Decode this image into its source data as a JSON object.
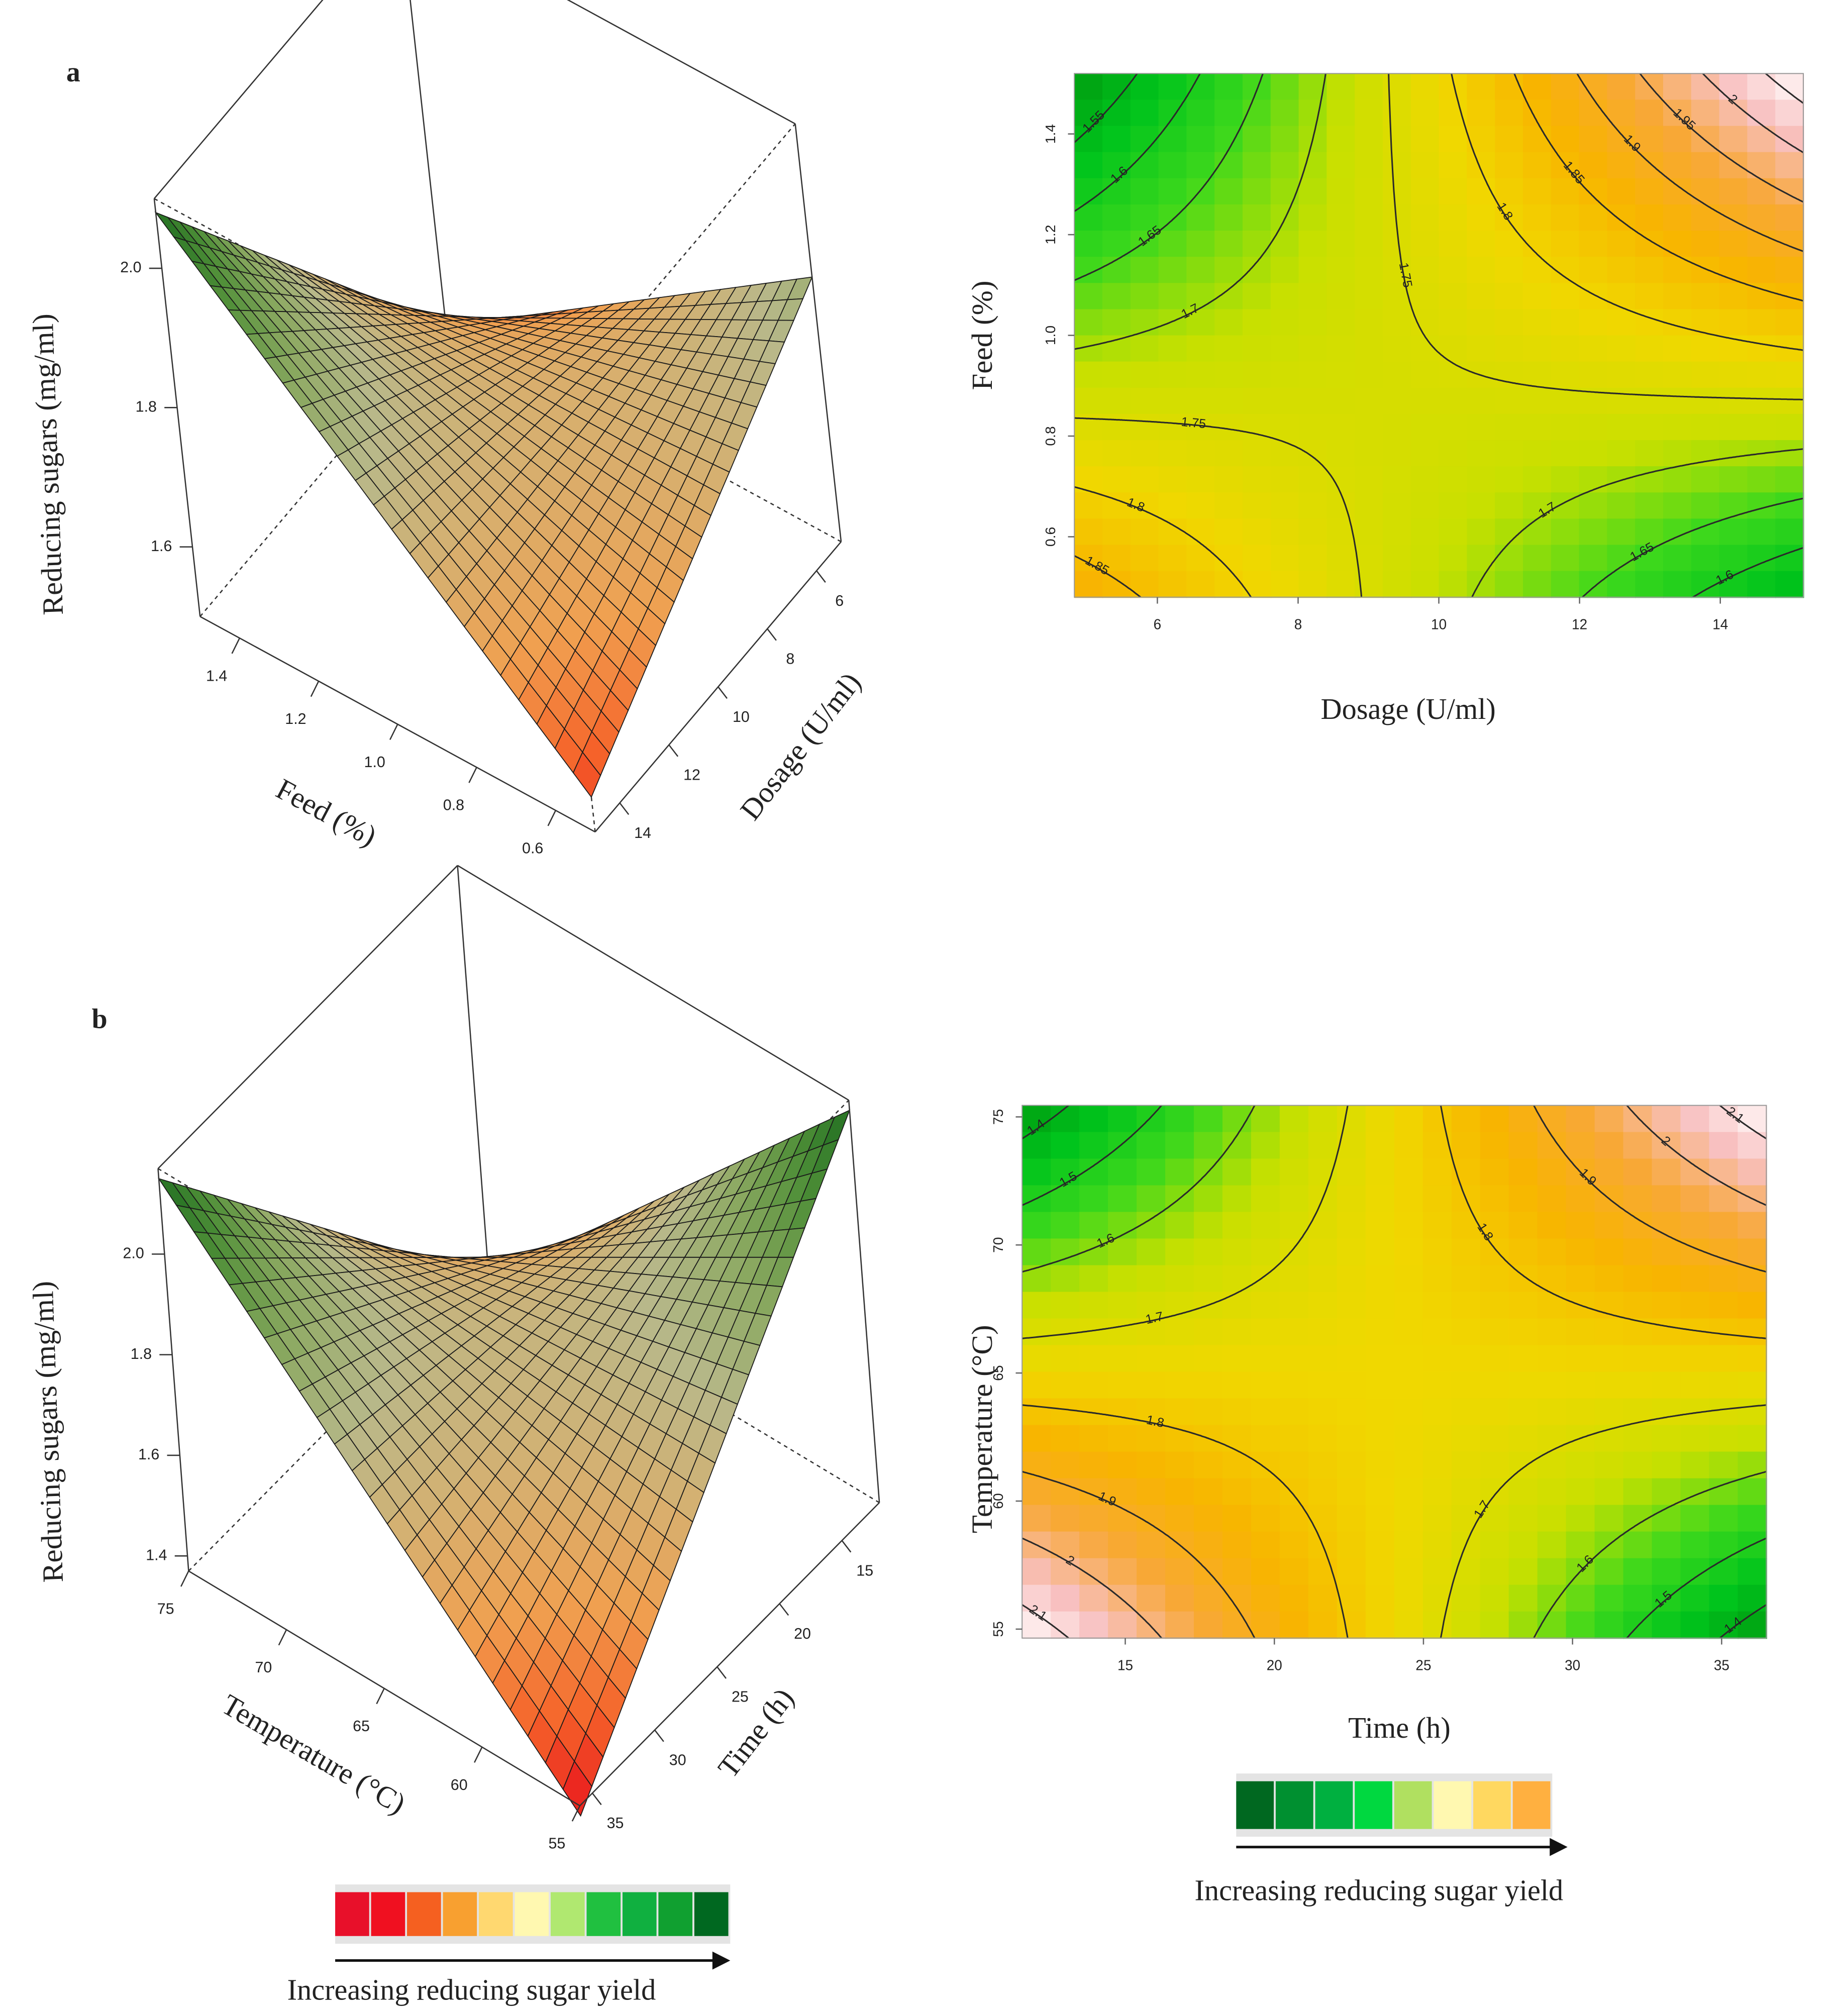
{
  "chart_data": [
    {
      "type": "surface3d",
      "panel": "a",
      "zlabel": "Reducing sugars (mg/ml)",
      "xlabel": "Dosage (U/ml)",
      "ylabel": "Feed (%)",
      "xlim": [
        5,
        15
      ],
      "ylim": [
        0.5,
        1.5
      ],
      "zlim": [
        1.5,
        2.1
      ],
      "xticks": [
        6,
        8,
        10,
        12,
        14
      ],
      "yticks": [
        0.6,
        0.8,
        {
          "value": 1.0,
          "label": "1.0"
        },
        1.2,
        1.4
      ],
      "zticks": [
        1.6,
        1.8,
        {
          "value": 2.0,
          "label": "2.0"
        }
      ],
      "z": [
        [
          1.88,
          1.55
        ],
        [
          1.5,
          2.08
        ]
      ],
      "colors": [
        "#e8101c",
        "#f5642a",
        "#f0a050",
        "#d6b070",
        "#b8b88a",
        "#8aa860",
        "#4f8f38",
        "#1f6e20"
      ]
    },
    {
      "type": "contour",
      "xlabel": "Dosage (U/ml)",
      "ylabel": "Feed (%)",
      "xlim": [
        4.82,
        15.18
      ],
      "ylim": [
        0.48,
        1.52
      ],
      "xticks": [
        6,
        8,
        10,
        12,
        14
      ],
      "yticks": [
        0.6,
        0.8,
        {
          "value": 1.0,
          "label": "1.0"
        },
        1.2,
        1.4
      ],
      "z": [
        [
          1.88,
          1.55
        ],
        [
          1.5,
          2.08
        ]
      ],
      "levels": [
        1.55,
        1.6,
        1.65,
        1.7,
        1.75,
        1.8,
        1.85,
        1.9,
        1.95,
        2,
        2.05
      ],
      "colors": [
        "#009a10",
        "#00c41c",
        "#3cd81c",
        "#c8e000",
        "#f0d800",
        "#f8b400",
        "#f8a838",
        "#f8c0c0",
        "#ffffff"
      ]
    },
    {
      "type": "surface3d",
      "panel": "b",
      "zlabel": "Reducing sugars (mg/ml)",
      "xlabel": "Time (h)",
      "ylabel": "Temperature (°C)",
      "xlim": [
        12,
        36
      ],
      "ylim": [
        55,
        75
      ],
      "zlim": [
        1.37,
        2.17
      ],
      "xticks": [
        15,
        20,
        25,
        30,
        35
      ],
      "yticks": [
        55,
        60,
        65,
        70,
        75
      ],
      "zticks": [
        1.4,
        1.6,
        1.8,
        {
          "value": 2.0,
          "label": "2.0"
        }
      ],
      "z": [
        [
          2.15,
          1.35
        ],
        [
          1.35,
          2.15
        ]
      ],
      "colors": [
        "#e8101c",
        "#f5642a",
        "#f0a050",
        "#d6b070",
        "#b8b88a",
        "#8aa860",
        "#4f8f38",
        "#1f6e20"
      ]
    },
    {
      "type": "contour",
      "xlabel": "Time (h)",
      "ylabel": "Temperature (°C)",
      "xlim": [
        11.54,
        36.5
      ],
      "ylim": [
        54.65,
        75.45
      ],
      "xticks": [
        15,
        20,
        25,
        30,
        35
      ],
      "yticks": [
        55,
        60,
        65,
        70,
        75
      ],
      "z": [
        [
          2.15,
          1.35
        ],
        [
          1.35,
          2.15
        ]
      ],
      "levels": [
        1.4,
        1.5,
        1.6,
        1.7,
        1.8,
        1.9,
        2,
        2.1
      ],
      "colors": [
        "#009a10",
        "#00c41c",
        "#3cd81c",
        "#c8e000",
        "#f0d800",
        "#f8b400",
        "#f8a838",
        "#f8c0c0",
        "#ffffff"
      ]
    },
    {
      "type": "colorbar",
      "label": "Increasing reducing sugar yield",
      "colors": [
        "#e8102a",
        "#f01020",
        "#f56020",
        "#f8a030",
        "#ffd870",
        "#fff8b0",
        "#b0e870",
        "#20c040",
        "#10b040",
        "#10a030",
        "#006820"
      ]
    },
    {
      "type": "colorbar",
      "label": "Increasing reducing sugar yield",
      "colors": [
        "#006820",
        "#009030",
        "#00b040",
        "#00d840",
        "#b0e060",
        "#fff8b0",
        "#ffd860",
        "#ffb040"
      ]
    }
  ]
}
